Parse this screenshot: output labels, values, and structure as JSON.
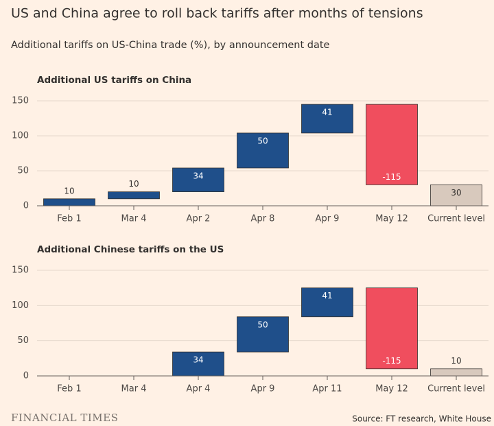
{
  "header": {
    "title": "US and China agree to roll back tariffs after months of tensions",
    "subtitle": "Additional tariffs on US-China trade (%), by announcement date"
  },
  "footer": {
    "brand": "FINANCIAL TIMES",
    "source": "Source: FT research, White House"
  },
  "chart_data": [
    {
      "type": "waterfall",
      "title": "Additional US tariffs on China",
      "categories": [
        "Feb 1",
        "Mar 4",
        "Apr 2",
        "Apr 8",
        "Apr 9",
        "May 12",
        "Current level"
      ],
      "values": [
        10,
        10,
        34,
        50,
        41,
        -115,
        30
      ],
      "measure": [
        "relative",
        "relative",
        "relative",
        "relative",
        "relative",
        "relative",
        "total"
      ],
      "colors": {
        "increase": "#1f4f8a",
        "decrease": "#f04e5e",
        "total": "#d8c9bd"
      },
      "ylim": [
        0,
        150
      ],
      "yticks": [
        0,
        50,
        100,
        150
      ],
      "grid": true
    },
    {
      "type": "waterfall",
      "title": "Additional Chinese tariffs on the US",
      "categories": [
        "Feb 1",
        "Mar 4",
        "Apr 4",
        "Apr 9",
        "Apr 11",
        "May 12",
        "Current level"
      ],
      "values": [
        null,
        null,
        34,
        50,
        41,
        -115,
        10
      ],
      "measure": [
        "relative",
        "relative",
        "relative",
        "relative",
        "relative",
        "relative",
        "total"
      ],
      "colors": {
        "increase": "#1f4f8a",
        "decrease": "#f04e5e",
        "total": "#d8c9bd"
      },
      "ylim": [
        0,
        150
      ],
      "yticks": [
        0,
        50,
        100,
        150
      ],
      "grid": true
    }
  ]
}
